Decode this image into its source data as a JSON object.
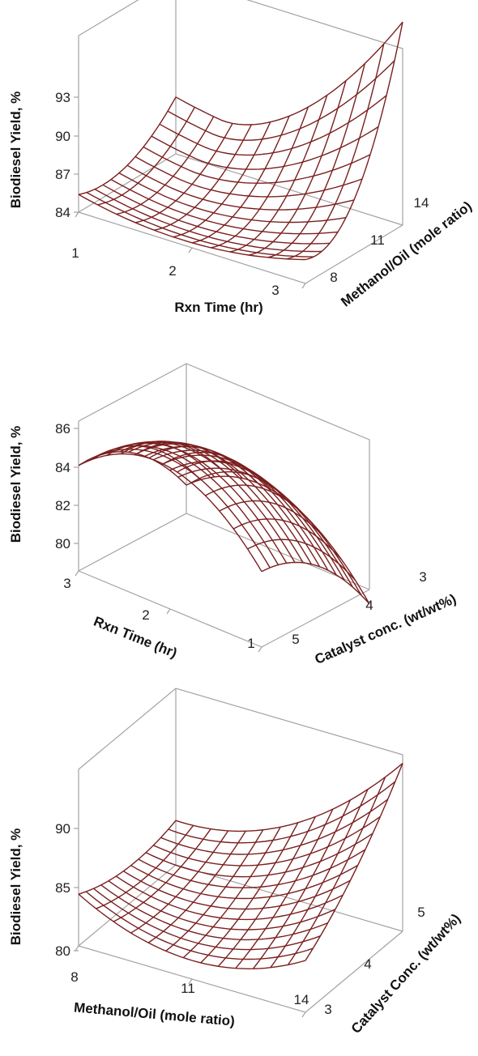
{
  "chart_data": [
    {
      "type": "surface",
      "xlabel": "Rxn Time (hr)",
      "ylabel": "Methanol/Oil (mole ratio)",
      "zlabel": "Biodiesel Yield, %",
      "x_ticks": [
        "1",
        "2",
        "3"
      ],
      "y_ticks": [
        "8",
        "11",
        "14"
      ],
      "z_ticks": [
        "84",
        "87",
        "90",
        "93"
      ],
      "xlim": [
        1,
        3
      ],
      "ylim": [
        8,
        14
      ],
      "zlim": [
        84,
        93
      ],
      "grid": [
        12,
        12
      ],
      "surface": {
        "corners": {
          "x1_y8": 86.3,
          "x3_y8": 84.7,
          "x1_y14": 84.8,
          "x3_y14": 93.3
        },
        "minimum": {
          "x": 1.9,
          "y": 9.5,
          "z": 84.0
        }
      }
    },
    {
      "type": "surface",
      "xlabel": "Rxn Time (hr)",
      "ylabel": "Catalyst conc. (wt/wt%)",
      "zlabel": "Biodiesel Yield, %",
      "x_ticks": [
        "3",
        "2",
        "1"
      ],
      "y_ticks": [
        "3",
        "4",
        "5"
      ],
      "z_ticks": [
        "80",
        "82",
        "84",
        "86"
      ],
      "xlim": [
        1,
        3
      ],
      "ylim": [
        3,
        5
      ],
      "zlim": [
        79,
        86
      ],
      "grid": [
        13,
        13
      ],
      "surface": {
        "corners": {
          "x3_y5": 81.3,
          "x1_y5": 79.2,
          "x3_y3": 84.7,
          "x1_y3": 81.5
        },
        "maximum": {
          "x": 2.0,
          "y": 3.2,
          "z": 86.3
        }
      }
    },
    {
      "type": "surface",
      "xlabel": "Methanol/Oil (mole ratio)",
      "ylabel": "Catalyst Conc. (wt/wt%)",
      "zlabel": "Biodiesel Yield, %",
      "x_ticks": [
        "8",
        "11",
        "14"
      ],
      "y_ticks": [
        "3",
        "4",
        "5"
      ],
      "z_ticks": [
        "80",
        "85",
        "90"
      ],
      "xlim": [
        8,
        14
      ],
      "ylim": [
        3,
        5
      ],
      "zlim": [
        79,
        91
      ],
      "grid": [
        13,
        13
      ],
      "surface": {
        "corners": {
          "x8_y3": 87.9,
          "x14_y3": 82.5,
          "x8_y5": 86.5,
          "x14_y5": 90.0
        },
        "minimum": {
          "x": 11.0,
          "y": 3.4,
          "z": 80.2
        }
      }
    }
  ]
}
